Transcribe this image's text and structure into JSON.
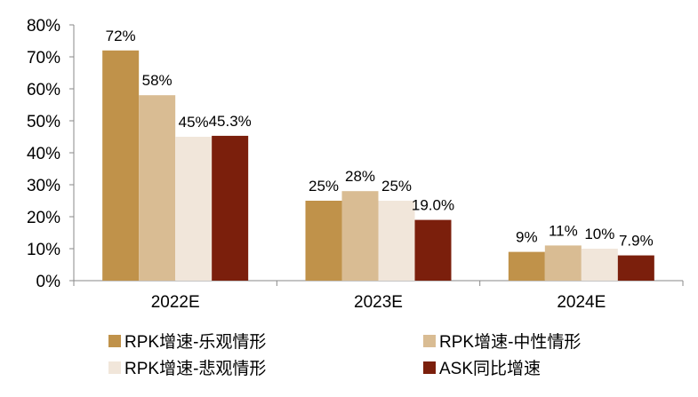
{
  "chart_data": {
    "type": "bar",
    "categories": [
      "2022E",
      "2023E",
      "2024E"
    ],
    "series": [
      {
        "name": "RPK增速-乐观情形",
        "color": "#C0924A",
        "values": [
          72,
          25,
          9
        ],
        "labels": [
          "72%",
          "25%",
          "9%"
        ]
      },
      {
        "name": "RPK增速-中性情形",
        "color": "#D9BC93",
        "values": [
          58,
          28,
          11
        ],
        "labels": [
          "58%",
          "28%",
          "11%"
        ]
      },
      {
        "name": "RPK增速-悲观情形",
        "color": "#F1E6DA",
        "values": [
          45,
          25,
          10
        ],
        "labels": [
          "45%",
          "25%",
          "10%"
        ]
      },
      {
        "name": "ASK同比增速",
        "color": "#7B1F0C",
        "values": [
          45.3,
          19.0,
          7.9
        ],
        "labels": [
          "45.3%",
          "19.0%",
          "7.9%"
        ]
      }
    ],
    "ylim": [
      0,
      80
    ],
    "yticks": [
      "0%",
      "10%",
      "20%",
      "30%",
      "40%",
      "50%",
      "60%",
      "70%",
      "80%"
    ],
    "title": "",
    "xlabel": "",
    "ylabel": "",
    "grid": false,
    "legend": "bottom"
  }
}
